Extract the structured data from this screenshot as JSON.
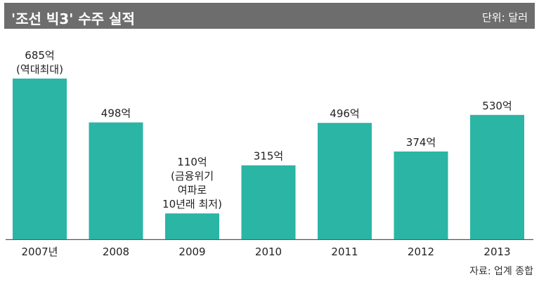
{
  "header": {
    "title": "'조선 빅3' 수주 실적",
    "unit": "단위: 달러"
  },
  "source": "자료: 업계 종합",
  "colors": {
    "bar": "#2bb5a5",
    "header_bg": "#6d6d6d"
  },
  "chart_data": {
    "type": "bar",
    "categories": [
      "2007년",
      "2008",
      "2009",
      "2010",
      "2011",
      "2012",
      "2013"
    ],
    "values": [
      685,
      498,
      110,
      315,
      496,
      374,
      530
    ],
    "value_labels": [
      [
        "685억",
        "(역대최대)"
      ],
      [
        "498억"
      ],
      [
        "110억",
        "(금융위기",
        "여파로",
        "10년래 최저)"
      ],
      [
        "315억"
      ],
      [
        "496억"
      ],
      [
        "374억"
      ],
      [
        "530억"
      ]
    ],
    "ylim": [
      0,
      685
    ],
    "grid": false,
    "legend": "none"
  }
}
